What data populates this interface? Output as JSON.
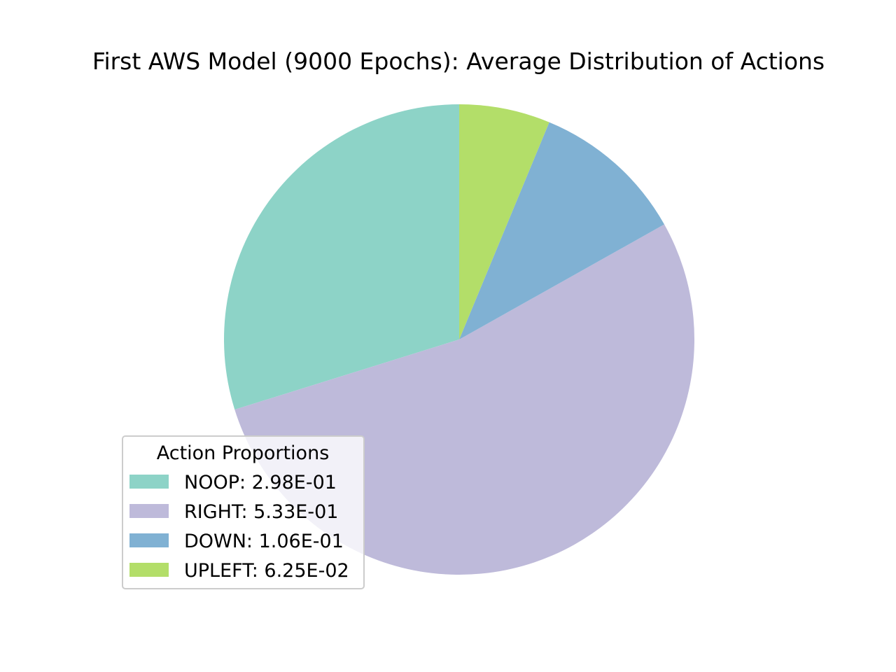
{
  "chart_data": {
    "type": "pie",
    "title": "First AWS Model (9000 Epochs): Average Distribution of Actions",
    "legend_title": "Action Proportions",
    "legend_position": "lower-left",
    "start_angle_deg": 90,
    "direction": "counterclockwise",
    "slices": [
      {
        "name": "NOOP",
        "value": 0.298,
        "label": "NOOP: 2.98E-01",
        "color": "#8dd3c7"
      },
      {
        "name": "RIGHT",
        "value": 0.533,
        "label": "RIGHT: 5.33E-01",
        "color": "#bebada"
      },
      {
        "name": "DOWN",
        "value": 0.106,
        "label": "DOWN: 1.06E-01",
        "color": "#80b1d3"
      },
      {
        "name": "UPLEFT",
        "value": 0.0625,
        "label": "UPLEFT: 6.25E-02",
        "color": "#b3de69"
      }
    ]
  }
}
